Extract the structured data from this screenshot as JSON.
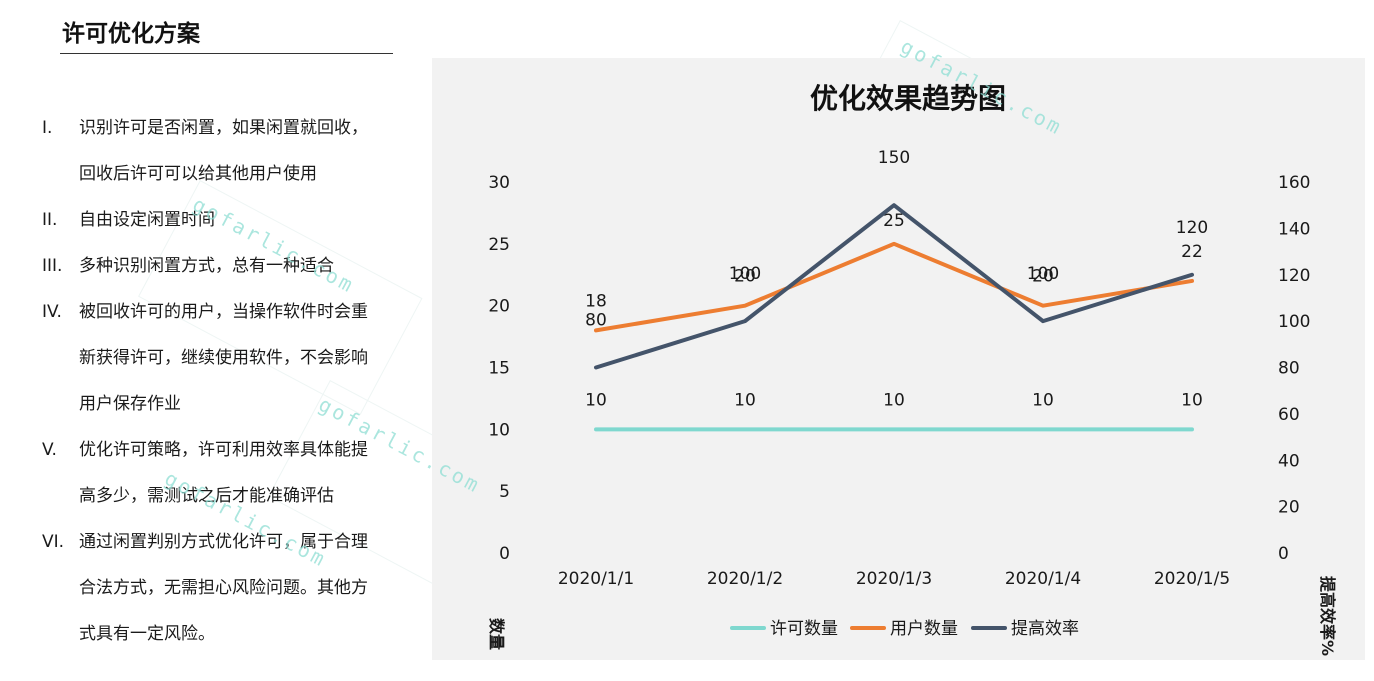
{
  "section_title": "许可优化方案",
  "bullets": [
    {
      "num": "I.",
      "lines": [
        "识别许可是否闲置，如果闲置就回收，",
        "回收后许可可以给其他用户使用"
      ]
    },
    {
      "num": "II.",
      "lines": [
        "自由设定闲置时间"
      ]
    },
    {
      "num": "III.",
      "lines": [
        "多种识别闲置方式，总有一种适合"
      ]
    },
    {
      "num": "IV.",
      "lines": [
        "被回收许可的用户，当操作软件时会重",
        "新获得许可，继续使用软件，不会影响",
        "用户保存作业"
      ]
    },
    {
      "num": "V.",
      "lines": [
        "优化许可策略，许可利用效率具体能提",
        "高多少，需测试之后才能准确评估"
      ]
    },
    {
      "num": "VI.",
      "lines": [
        "通过闲置判别方式优化许可，属于合理",
        "合法方式，无需担心风险问题。其他方",
        "式具有一定风险。"
      ]
    }
  ],
  "watermark": "gofarlic.com",
  "chart_data": {
    "type": "line",
    "title": "优化效果趋势图",
    "categories": [
      "2020/1/1",
      "2020/1/2",
      "2020/1/3",
      "2020/1/4",
      "2020/1/5"
    ],
    "ylabel": "数量",
    "y2label": "提高效率%",
    "ylim": [
      0,
      30
    ],
    "y2lim": [
      0,
      160
    ],
    "yticks": [
      0,
      5,
      10,
      15,
      20,
      25,
      30
    ],
    "y2ticks": [
      0,
      20,
      40,
      60,
      80,
      100,
      120,
      140,
      160
    ],
    "legend_position": "bottom",
    "grid": false,
    "series": [
      {
        "name": "许可数量",
        "axis": "left",
        "color": "#7fd8cf",
        "values": [
          10,
          10,
          10,
          10,
          10
        ]
      },
      {
        "name": "用户数量",
        "axis": "left",
        "color": "#ed7d31",
        "values": [
          18,
          20,
          25,
          20,
          22
        ]
      },
      {
        "name": "提高效率",
        "axis": "right",
        "color": "#44546a",
        "values": [
          80,
          100,
          150,
          100,
          120
        ]
      }
    ]
  }
}
